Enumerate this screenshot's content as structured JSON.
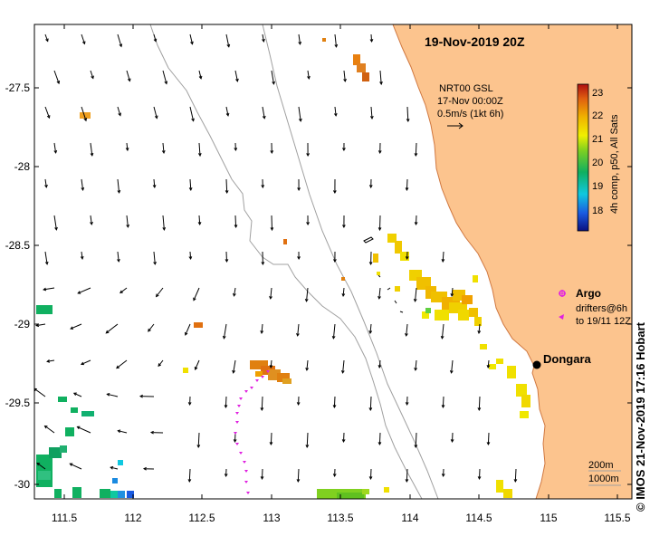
{
  "title": "19-Nov-2019 20Z",
  "product": {
    "line1": "NRT00 GSL",
    "line2": "17-Nov 00:00Z",
    "line3": "0.5m/s (1kt 6h)"
  },
  "colorbar": {
    "label": "4h comp, p50, All Sats",
    "ticks": [
      "23",
      "22",
      "21",
      "20",
      "19",
      "18"
    ],
    "min": 17.5,
    "max": 23.3
  },
  "legend": {
    "argo_label": "Argo",
    "drifters_line1": "drifters@6h",
    "drifters_line2": "to 19/11 12Z"
  },
  "place": {
    "name": "Dongara"
  },
  "isobaths": {
    "shallow": "200m",
    "deep": "1000m"
  },
  "x_ticks": [
    "111.5",
    "112",
    "112.5",
    "113",
    "113.5",
    "114",
    "114.5",
    "115",
    "115.5"
  ],
  "y_ticks": [
    "-27.5",
    "-28",
    "-28.5",
    "-29",
    "-29.5",
    "-30"
  ],
  "credit": "© IMOS 21-Nov-2019 17:16 Hobart",
  "colors": {
    "land": "#fcc48e",
    "coast": "#d07840",
    "isobath": "#999999",
    "argo": "#e020e0",
    "drifter": "#e020e0"
  }
}
